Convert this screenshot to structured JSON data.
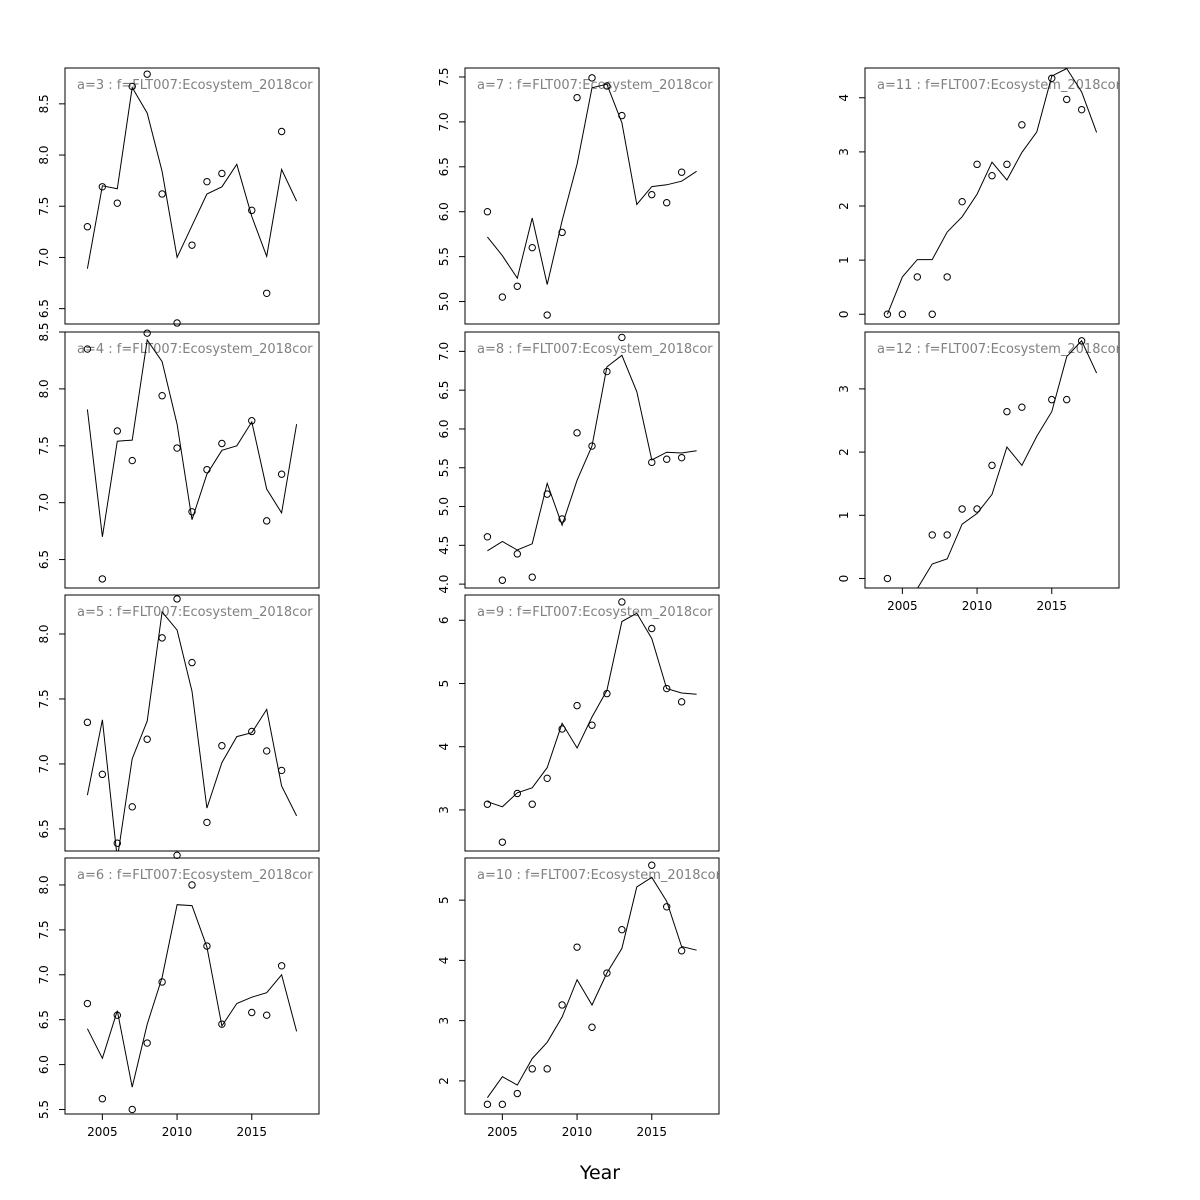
{
  "chart_data": {
    "type": "line",
    "xlabel": "Year",
    "x_ticks": [
      2005,
      2010,
      2015
    ],
    "panels": [
      {
        "id": "a3",
        "title": "a=3  :  f=FLT007:Ecosystem_2018cor",
        "col": 0,
        "row": 0,
        "xlim": [
          2002.5,
          2019.5
        ],
        "ylim": [
          6.35,
          8.85
        ],
        "yticks": [
          "6.5",
          "7.0",
          "7.5",
          "8.0",
          "8.5"
        ],
        "x_fit": [
          2004,
          2005,
          2006,
          2007,
          2008,
          2009,
          2010,
          2011,
          2012,
          2013,
          2014,
          2015,
          2016,
          2017,
          2018
        ],
        "fit": [
          6.89,
          7.7,
          7.67,
          8.66,
          8.41,
          7.84,
          7.0,
          7.31,
          7.62,
          7.69,
          7.91,
          7.4,
          7.01,
          7.86,
          7.55
        ],
        "x_obs": [
          2004,
          2005,
          2006,
          2007,
          2008,
          2009,
          2010,
          2011,
          2012,
          2013,
          2015,
          2016,
          2017
        ],
        "obs": [
          7.3,
          7.69,
          7.53,
          8.67,
          8.79,
          7.62,
          6.36,
          7.12,
          7.74,
          7.82,
          7.46,
          6.65,
          8.23
        ]
      },
      {
        "id": "a4",
        "title": "a=4  :  f=FLT007:Ecosystem_2018cor",
        "col": 0,
        "row": 1,
        "xlim": [
          2002.5,
          2019.5
        ],
        "ylim": [
          6.25,
          8.5
        ],
        "yticks": [
          "6.5",
          "7.0",
          "7.5",
          "8.0",
          "8.5"
        ],
        "x_fit": [
          2004,
          2005,
          2006,
          2007,
          2008,
          2009,
          2010,
          2011,
          2012,
          2013,
          2014,
          2015,
          2016,
          2017,
          2018
        ],
        "fit": [
          7.82,
          6.7,
          7.54,
          7.55,
          8.43,
          8.24,
          7.69,
          6.85,
          7.25,
          7.46,
          7.5,
          7.71,
          7.12,
          6.91,
          7.69
        ],
        "x_obs": [
          2004,
          2005,
          2006,
          2007,
          2008,
          2009,
          2010,
          2011,
          2012,
          2013,
          2015,
          2016,
          2017
        ],
        "obs": [
          8.35,
          6.33,
          7.63,
          7.37,
          8.49,
          7.94,
          7.48,
          6.92,
          7.29,
          7.52,
          7.72,
          6.84,
          7.25
        ]
      },
      {
        "id": "a5",
        "title": "a=5  :  f=FLT007:Ecosystem_2018cor",
        "col": 0,
        "row": 2,
        "xlim": [
          2002.5,
          2019.5
        ],
        "ylim": [
          6.33,
          8.3
        ],
        "yticks": [
          "6.5",
          "7.0",
          "7.5",
          "8.0"
        ],
        "x_fit": [
          2004,
          2005,
          2006,
          2007,
          2008,
          2009,
          2010,
          2011,
          2012,
          2013,
          2014,
          2015,
          2016,
          2017,
          2018
        ],
        "fit": [
          6.76,
          7.34,
          6.27,
          7.04,
          7.33,
          8.17,
          8.03,
          7.56,
          6.66,
          7.01,
          7.21,
          7.24,
          7.42,
          6.83,
          6.6
        ],
        "x_obs": [
          2004,
          2005,
          2006,
          2007,
          2008,
          2009,
          2010,
          2011,
          2012,
          2013,
          2015,
          2016,
          2017
        ],
        "obs": [
          7.32,
          6.92,
          6.39,
          6.67,
          7.19,
          7.97,
          8.27,
          7.78,
          6.55,
          7.14,
          7.25,
          7.1,
          6.95
        ]
      },
      {
        "id": "a6",
        "title": "a=6  :  f=FLT007:Ecosystem_2018cor",
        "col": 0,
        "row": 3,
        "xlim": [
          2002.5,
          2019.5
        ],
        "ylim": [
          5.45,
          8.3
        ],
        "yticks": [
          "5.5",
          "6.0",
          "6.5",
          "7.0",
          "7.5",
          "8.0"
        ],
        "x_fit": [
          2004,
          2005,
          2006,
          2007,
          2008,
          2009,
          2010,
          2011,
          2012,
          2013,
          2014,
          2015,
          2016,
          2017,
          2018
        ],
        "fit": [
          6.4,
          6.07,
          6.6,
          5.75,
          6.45,
          6.97,
          7.78,
          7.77,
          7.31,
          6.43,
          6.68,
          6.75,
          6.8,
          7.0,
          6.37
        ],
        "x_obs": [
          2004,
          2005,
          2006,
          2007,
          2008,
          2009,
          2010,
          2011,
          2012,
          2013,
          2015,
          2016,
          2017
        ],
        "obs": [
          6.68,
          5.62,
          6.55,
          5.5,
          6.24,
          6.92,
          8.33,
          8.0,
          7.32,
          6.45,
          6.58,
          6.55,
          7.1
        ]
      },
      {
        "id": "a7",
        "title": "a=7  :  f=FLT007:Ecosystem_2018cor",
        "col": 1,
        "row": 0,
        "xlim": [
          2002.5,
          2019.5
        ],
        "ylim": [
          4.75,
          7.6
        ],
        "yticks": [
          "5.0",
          "5.5",
          "6.0",
          "6.5",
          "7.0",
          "7.5"
        ],
        "x_fit": [
          2004,
          2005,
          2006,
          2007,
          2008,
          2009,
          2010,
          2011,
          2012,
          2013,
          2014,
          2015,
          2016,
          2017,
          2018
        ],
        "fit": [
          5.72,
          5.51,
          5.26,
          5.93,
          5.19,
          5.9,
          6.53,
          7.38,
          7.42,
          6.99,
          6.08,
          6.28,
          6.3,
          6.34,
          6.45
        ],
        "x_obs": [
          2004,
          2005,
          2006,
          2007,
          2008,
          2009,
          2010,
          2011,
          2012,
          2013,
          2015,
          2016,
          2017
        ],
        "obs": [
          6.0,
          5.05,
          5.17,
          5.6,
          4.85,
          5.77,
          7.27,
          7.49,
          7.4,
          7.07,
          6.19,
          6.1,
          6.44
        ]
      },
      {
        "id": "a8",
        "title": "a=8  :  f=FLT007:Ecosystem_2018cor",
        "col": 1,
        "row": 1,
        "xlim": [
          2002.5,
          2019.5
        ],
        "ylim": [
          3.95,
          7.25
        ],
        "yticks": [
          "4.0",
          "4.5",
          "5.0",
          "5.5",
          "6.0",
          "6.5",
          "7.0"
        ],
        "x_fit": [
          2004,
          2005,
          2006,
          2007,
          2008,
          2009,
          2010,
          2011,
          2012,
          2013,
          2014,
          2015,
          2016,
          2017,
          2018
        ],
        "fit": [
          4.43,
          4.55,
          4.44,
          4.52,
          5.3,
          4.76,
          5.34,
          5.78,
          6.8,
          6.95,
          6.48,
          5.6,
          5.7,
          5.69,
          5.72
        ],
        "x_obs": [
          2004,
          2005,
          2006,
          2007,
          2008,
          2009,
          2010,
          2011,
          2012,
          2013,
          2015,
          2016,
          2017
        ],
        "obs": [
          4.61,
          4.05,
          4.39,
          4.09,
          5.16,
          4.84,
          5.95,
          5.78,
          6.74,
          7.18,
          5.57,
          5.61,
          5.63
        ]
      },
      {
        "id": "a9",
        "title": "a=9  :  f=FLT007:Ecosystem_2018cor",
        "col": 1,
        "row": 2,
        "xlim": [
          2002.5,
          2019.5
        ],
        "ylim": [
          2.35,
          6.4
        ],
        "yticks": [
          "3",
          "4",
          "5",
          "6"
        ],
        "x_fit": [
          2004,
          2005,
          2006,
          2007,
          2008,
          2009,
          2010,
          2011,
          2012,
          2013,
          2014,
          2015,
          2016,
          2017,
          2018
        ],
        "fit": [
          3.13,
          3.05,
          3.27,
          3.35,
          3.67,
          4.37,
          3.98,
          4.47,
          4.89,
          5.98,
          6.11,
          5.71,
          4.92,
          4.85,
          4.83
        ],
        "x_obs": [
          2004,
          2005,
          2006,
          2007,
          2008,
          2009,
          2010,
          2011,
          2012,
          2013,
          2015,
          2016,
          2017
        ],
        "obs": [
          3.09,
          2.49,
          3.26,
          3.09,
          3.5,
          4.28,
          4.65,
          4.34,
          4.84,
          6.29,
          5.87,
          4.92,
          4.71
        ]
      },
      {
        "id": "a10",
        "title": "a=10  :  f=FLT007:Ecosystem_2018cor",
        "col": 1,
        "row": 3,
        "xlim": [
          2002.5,
          2019.5
        ],
        "ylim": [
          1.45,
          5.7
        ],
        "yticks": [
          "2",
          "3",
          "4",
          "5"
        ],
        "x_fit": [
          2004,
          2005,
          2006,
          2007,
          2008,
          2009,
          2010,
          2011,
          2012,
          2013,
          2014,
          2015,
          2016,
          2017,
          2018
        ],
        "fit": [
          1.72,
          2.07,
          1.93,
          2.37,
          2.64,
          3.06,
          3.68,
          3.26,
          3.79,
          4.2,
          5.22,
          5.38,
          4.98,
          4.23,
          4.17
        ],
        "x_obs": [
          2004,
          2005,
          2006,
          2007,
          2008,
          2009,
          2010,
          2011,
          2012,
          2013,
          2015,
          2016,
          2017
        ],
        "obs": [
          1.61,
          1.61,
          1.79,
          2.2,
          2.2,
          3.26,
          4.22,
          2.89,
          3.79,
          4.51,
          5.58,
          4.89,
          4.16
        ]
      },
      {
        "id": "a11",
        "title": "a=11  :  f=FLT007:Ecosystem_2018cor",
        "col": 2,
        "row": 0,
        "xlim": [
          2002.5,
          2019.5
        ],
        "ylim": [
          -0.18,
          4.55
        ],
        "yticks": [
          "0",
          "1",
          "2",
          "3",
          "4"
        ],
        "x_fit": [
          2004,
          2005,
          2006,
          2007,
          2008,
          2009,
          2010,
          2011,
          2012,
          2013,
          2014,
          2015,
          2016,
          2017,
          2018
        ],
        "fit": [
          0.0,
          0.69,
          1.01,
          1.01,
          1.52,
          1.8,
          2.22,
          2.81,
          2.48,
          2.99,
          3.37,
          4.4,
          4.54,
          4.11,
          3.36
        ],
        "x_obs": [
          2004,
          2005,
          2006,
          2007,
          2008,
          2009,
          2010,
          2011,
          2012,
          2013,
          2015,
          2016,
          2017
        ],
        "obs": [
          0.0,
          0.0,
          0.69,
          0.0,
          0.69,
          2.08,
          2.77,
          2.56,
          2.77,
          3.5,
          4.36,
          3.97,
          3.78
        ]
      },
      {
        "id": "a12",
        "title": "a=12  :  f=FLT007:Ecosystem_2018cor",
        "col": 2,
        "row": 1,
        "xlim": [
          2002.5,
          2019.5
        ],
        "ylim": [
          -0.15,
          3.9
        ],
        "yticks": [
          "0",
          "1",
          "2",
          "3"
        ],
        "x_fit": [
          2006,
          2007,
          2008,
          2009,
          2010,
          2011,
          2012,
          2013,
          2014,
          2015,
          2016,
          2017,
          2018
        ],
        "fit": [
          -0.16,
          0.23,
          0.31,
          0.86,
          1.03,
          1.33,
          2.08,
          1.79,
          2.25,
          2.64,
          3.51,
          3.76,
          3.25
        ],
        "x_obs": [
          2004,
          2007,
          2008,
          2009,
          2010,
          2011,
          2012,
          2013,
          2015,
          2016,
          2017
        ],
        "obs": [
          0.0,
          0.69,
          0.69,
          1.1,
          1.1,
          1.79,
          2.64,
          2.71,
          2.83,
          2.83,
          3.76
        ]
      }
    ]
  }
}
